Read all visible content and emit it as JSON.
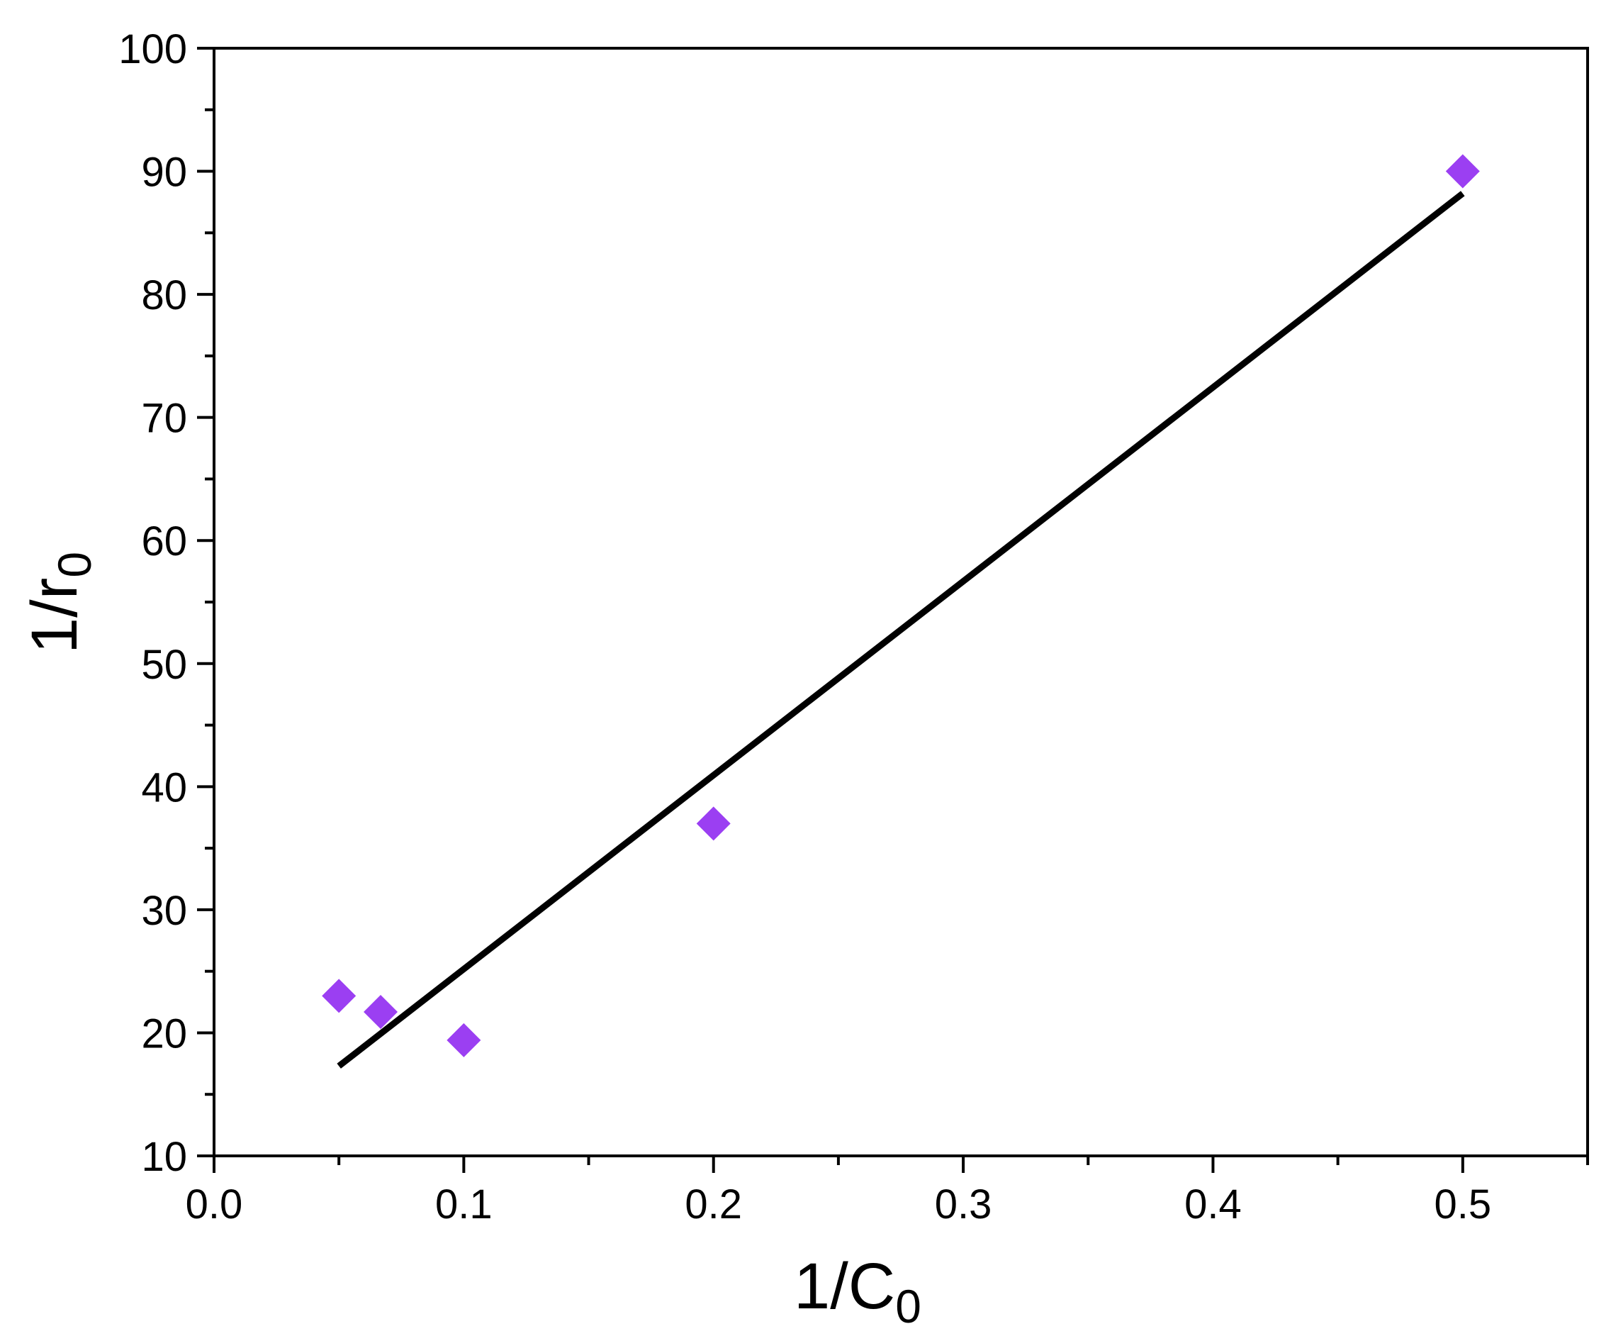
{
  "chart_data": {
    "type": "scatter",
    "xlabel": {
      "main": "1/C",
      "sub": "0"
    },
    "ylabel": {
      "main": "1/r",
      "sub": "0"
    },
    "xlim": [
      0,
      0.55
    ],
    "ylim": [
      10,
      100
    ],
    "x_ticks": [
      {
        "value": 0.0,
        "label": "0.0"
      },
      {
        "value": 0.1,
        "label": "0.1"
      },
      {
        "value": 0.2,
        "label": "0.2"
      },
      {
        "value": 0.3,
        "label": "0.3"
      },
      {
        "value": 0.4,
        "label": "0.4"
      },
      {
        "value": 0.5,
        "label": "0.5"
      }
    ],
    "x_minor_ticks": [
      0.05,
      0.15,
      0.25,
      0.35,
      0.45,
      0.55
    ],
    "y_ticks": [
      {
        "value": 10,
        "label": "10"
      },
      {
        "value": 20,
        "label": "20"
      },
      {
        "value": 30,
        "label": "30"
      },
      {
        "value": 40,
        "label": "40"
      },
      {
        "value": 50,
        "label": "50"
      },
      {
        "value": 60,
        "label": "60"
      },
      {
        "value": 70,
        "label": "70"
      },
      {
        "value": 80,
        "label": "80"
      },
      {
        "value": 90,
        "label": "90"
      },
      {
        "value": 100,
        "label": "100"
      }
    ],
    "y_minor_ticks": [
      15,
      25,
      35,
      45,
      55,
      65,
      75,
      85,
      95
    ],
    "grid": false,
    "series": [
      {
        "marker": "diamond",
        "color": "#9b3ff2",
        "points": [
          {
            "x": 0.05,
            "y": 23.0
          },
          {
            "x": 0.0667,
            "y": 21.7
          },
          {
            "x": 0.1,
            "y": 19.4
          },
          {
            "x": 0.2,
            "y": 37.0
          },
          {
            "x": 0.5,
            "y": 90.0
          }
        ]
      }
    ],
    "fit_line": {
      "color": "#000000",
      "points": [
        {
          "x": 0.05,
          "y": 17.3
        },
        {
          "x": 0.5,
          "y": 88.2
        }
      ]
    }
  }
}
